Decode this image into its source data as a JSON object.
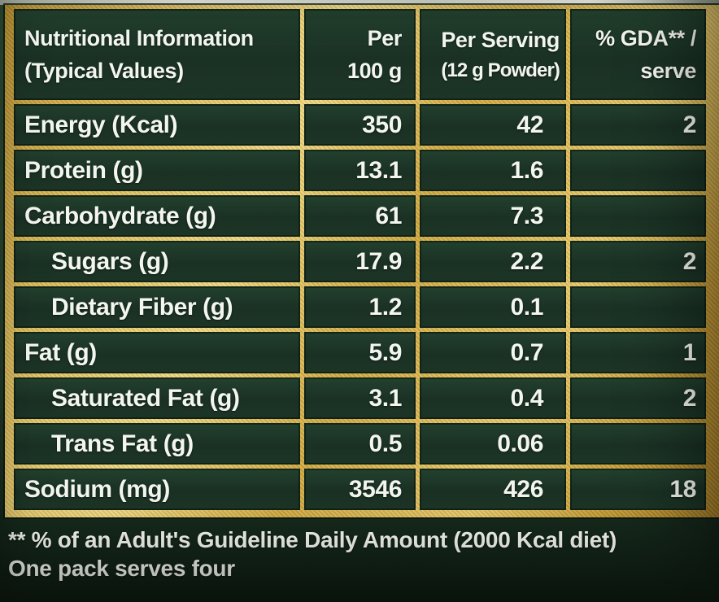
{
  "header": {
    "col1_line1": "Nutritional Information",
    "col1_line2": "(Typical Values)",
    "col2_line1": "Per",
    "col2_line2": "100 g",
    "col3_line1": "Per Serving",
    "col3_line2": "(12 g Powder)",
    "col4_line1": "% GDA** /",
    "col4_line2": "serve"
  },
  "table": {
    "rows": [
      {
        "label": "Energy (Kcal)",
        "per_100g": "350",
        "per_serving": "42",
        "gda": "2"
      },
      {
        "label": "Protein (g)",
        "per_100g": "13.1",
        "per_serving": "1.6",
        "gda": ""
      },
      {
        "label": "Carbohydrate (g)",
        "per_100g": "61",
        "per_serving": "7.3",
        "gda": ""
      },
      {
        "label": "Sugars (g)",
        "per_100g": "17.9",
        "per_serving": "2.2",
        "gda": "2"
      },
      {
        "label": "Dietary Fiber (g)",
        "per_100g": "1.2",
        "per_serving": "0.1",
        "gda": ""
      },
      {
        "label": "Fat (g)",
        "per_100g": "5.9",
        "per_serving": "0.7",
        "gda": "1"
      },
      {
        "label": "Saturated Fat (g)",
        "per_100g": "3.1",
        "per_serving": "0.4",
        "gda": "2"
      },
      {
        "label": "Trans Fat (g)",
        "per_100g": "0.5",
        "per_serving": "0.06",
        "gda": ""
      },
      {
        "label": "Sodium (mg)",
        "per_100g": "3546",
        "per_serving": "426",
        "gda": "18"
      }
    ]
  },
  "footer": {
    "line1": "** % of an Adult's Guideline Daily Amount (2000 Kcal diet)",
    "line2": "One pack serves four"
  },
  "colors": {
    "panel_green": "#1c3426",
    "grid_gold": "#d4ae48",
    "text_white": "#f3f6ee"
  }
}
